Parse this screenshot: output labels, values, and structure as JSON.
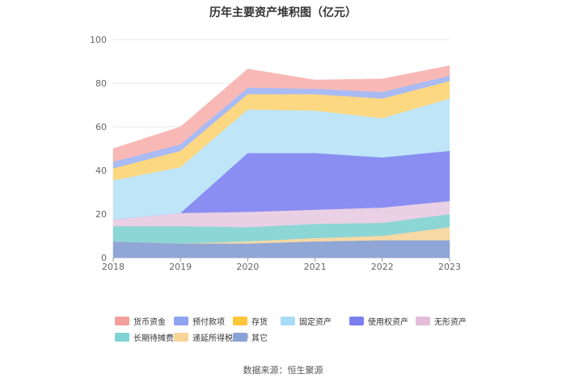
{
  "chart_data": {
    "type": "area",
    "stacked": true,
    "title": "历年主要资产堆积图（亿元）",
    "categories": [
      "2018",
      "2019",
      "2020",
      "2021",
      "2022",
      "2023"
    ],
    "y_ticks": [
      "0",
      "20",
      "40",
      "60",
      "80",
      "100"
    ],
    "ylim": [
      0,
      100
    ],
    "grid": true,
    "legend_position": "bottom",
    "series": [
      {
        "name": "其它",
        "color": "#8fa6d6",
        "values": [
          7.5,
          6.5,
          6.5,
          7.5,
          8.0,
          8.0
        ]
      },
      {
        "name": "递延所得税资产",
        "color": "#f8d9a3",
        "values": [
          0.0,
          0.0,
          1.0,
          1.5,
          2.0,
          6.0
        ]
      },
      {
        "name": "长期待摊费用",
        "color": "#8dd6d6",
        "values": [
          7.0,
          8.0,
          6.5,
          6.5,
          6.0,
          6.0
        ]
      },
      {
        "name": "无形资产",
        "color": "#ead0e5",
        "values": [
          3.0,
          6.0,
          7.0,
          6.5,
          7.0,
          6.0
        ]
      },
      {
        "name": "使用权资产",
        "color": "#8a8ef2",
        "values": [
          0.0,
          0.0,
          27.0,
          26.0,
          23.0,
          23.0
        ]
      },
      {
        "name": "固定资产",
        "color": "#bfe5f9",
        "values": [
          18.0,
          21.0,
          20.0,
          19.5,
          18.0,
          24.0
        ]
      },
      {
        "name": "存货",
        "color": "#fdd882",
        "values": [
          5.5,
          7.5,
          7.0,
          7.5,
          9.0,
          8.0
        ]
      },
      {
        "name": "预付款项",
        "color": "#a9bbf4",
        "values": [
          3.0,
          3.0,
          3.0,
          2.5,
          3.0,
          2.5
        ]
      },
      {
        "name": "货币资金",
        "color": "#f8b9b6",
        "values": [
          6.0,
          8.0,
          8.5,
          4.0,
          6.0,
          4.5
        ]
      }
    ]
  },
  "legend": [
    {
      "name": "货币资金",
      "color": "#f4a09a"
    },
    {
      "name": "预付款项",
      "color": "#8ea4f0"
    },
    {
      "name": "存货",
      "color": "#fdc63a"
    },
    {
      "name": "固定资产",
      "color": "#a9dcf7"
    },
    {
      "name": "使用权资产",
      "color": "#7a7ef0"
    },
    {
      "name": "无形资产",
      "color": "#e3bcdc"
    },
    {
      "name": "长期待摊费用",
      "color": "#7fd3d3"
    },
    {
      "name": "递延所得税资产",
      "color": "#f8d497"
    },
    {
      "name": "其它",
      "color": "#8aa3d6"
    }
  ],
  "source": "数据来源：恒生聚源"
}
